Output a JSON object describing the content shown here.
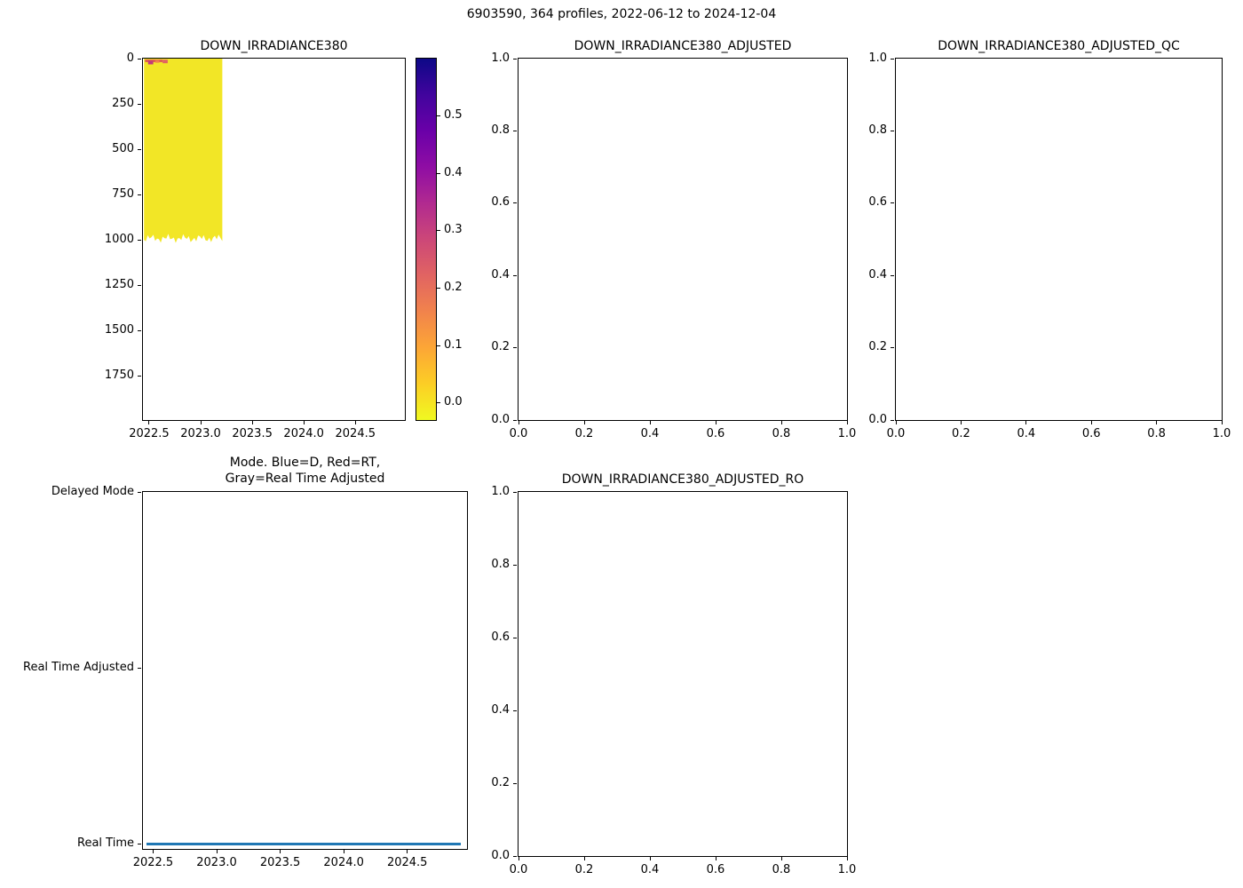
{
  "figure": {
    "suptitle": "6903590, 364 profiles, 2022-06-12 to 2024-12-04",
    "platform_id": "6903590",
    "profiles_count": "364 profiles",
    "date_range": "2022-06-12 to 2024-12-04",
    "background_color": "#ffffff",
    "axis_color": "#000000"
  },
  "chart_data": [
    {
      "id": "irradiance",
      "type": "heatmap",
      "title": "DOWN_IRRADIANCE380",
      "xlabel": "",
      "ylabel": "",
      "xlim": [
        2022.44,
        2024.98
      ],
      "xticks": [
        2022.5,
        2023.0,
        2023.5,
        2024.0,
        2024.5
      ],
      "xtick_labels": [
        "2022.5",
        "2023.0",
        "2023.5",
        "2024.0",
        "2024.5"
      ],
      "ylim_bottom_top": [
        1990,
        0
      ],
      "yticks": [
        0,
        250,
        500,
        750,
        1000,
        1250,
        1500,
        1750
      ],
      "ytick_labels": [
        "0",
        "250",
        "500",
        "750",
        "1000",
        "1250",
        "1500",
        "1750"
      ],
      "grid": false,
      "block": {
        "x0": 2022.45,
        "x1": 2023.21,
        "y_top": 0,
        "y_bottom_mean": 990,
        "y_bottom_jitter": 25,
        "color": "#f2e626",
        "note": "dense profile data, values near 0 (yellow on plasma_r scale), from mission start to ~2023.2, surface to ~1000 dbar"
      },
      "surface_marks": [
        {
          "x": 2022.46,
          "w": 0.17,
          "depth": 5,
          "h": 3,
          "color": "#e0614f"
        },
        {
          "x": 2022.49,
          "w": 0.05,
          "depth": 12,
          "h": 4,
          "color": "#c13a7a"
        },
        {
          "x": 2022.56,
          "w": 0.04,
          "depth": 8,
          "h": 3,
          "color": "#f1834c"
        },
        {
          "x": 2022.63,
          "w": 0.05,
          "depth": 6,
          "h": 4,
          "color": "#e16462"
        }
      ]
    },
    {
      "id": "adjusted",
      "type": "empty",
      "title": "DOWN_IRRADIANCE380_ADJUSTED",
      "xlim": [
        0,
        1
      ],
      "xticks": [
        0,
        0.2,
        0.4,
        0.6,
        0.8,
        1.0
      ],
      "xtick_labels": [
        "0.0",
        "0.2",
        "0.4",
        "0.6",
        "0.8",
        "1.0"
      ],
      "ylim_bottom_top": [
        0,
        1
      ],
      "yticks": [
        0,
        0.2,
        0.4,
        0.6,
        0.8,
        1.0
      ],
      "ytick_labels": [
        "0.0",
        "0.2",
        "0.4",
        "0.6",
        "0.8",
        "1.0"
      ],
      "grid": false
    },
    {
      "id": "adjusted_qc",
      "type": "empty",
      "title": "DOWN_IRRADIANCE380_ADJUSTED_QC",
      "xlim": [
        0,
        1
      ],
      "xticks": [
        0,
        0.2,
        0.4,
        0.6,
        0.8,
        1.0
      ],
      "xtick_labels": [
        "0.0",
        "0.2",
        "0.4",
        "0.6",
        "0.8",
        "1.0"
      ],
      "ylim_bottom_top": [
        0,
        1
      ],
      "yticks": [
        0,
        0.2,
        0.4,
        0.6,
        0.8,
        1.0
      ],
      "ytick_labels": [
        "0.0",
        "0.2",
        "0.4",
        "0.6",
        "0.8",
        "1.0"
      ],
      "grid": false
    },
    {
      "id": "mode",
      "type": "line",
      "title": "Mode. Blue=D, Red=RT,\nGray=Real Time Adjusted",
      "xlim": [
        2022.42,
        2024.97
      ],
      "xticks": [
        2022.5,
        2023.0,
        2023.5,
        2024.0,
        2024.5
      ],
      "xtick_labels": [
        "2022.5",
        "2023.0",
        "2023.5",
        "2024.0",
        "2024.5"
      ],
      "ylim_bottom_top": [
        -0.03,
        2.0
      ],
      "yticks": [
        0,
        1,
        2
      ],
      "ytick_labels": [
        "Real Time",
        "Real Time Adjusted",
        "Delayed Mode"
      ],
      "grid": false,
      "series": [
        {
          "name": "mode-real-time",
          "y": 0,
          "x0": 2022.45,
          "x1": 2024.92,
          "color": "#1f77b4",
          "linewidth": 3
        }
      ]
    },
    {
      "id": "adjusted_ro",
      "type": "empty",
      "title": "DOWN_IRRADIANCE380_ADJUSTED_RO",
      "xlim": [
        0,
        1
      ],
      "xticks": [
        0,
        0.2,
        0.4,
        0.6,
        0.8,
        1.0
      ],
      "xtick_labels": [
        "0.0",
        "0.2",
        "0.4",
        "0.6",
        "0.8",
        "1.0"
      ],
      "ylim_bottom_top": [
        0,
        1
      ],
      "yticks": [
        0,
        0.2,
        0.4,
        0.6,
        0.8,
        1.0
      ],
      "ytick_labels": [
        "0.0",
        "0.2",
        "0.4",
        "0.6",
        "0.8",
        "1.0"
      ],
      "grid": false
    }
  ],
  "colorbar": {
    "cmap_name": "plasma_r",
    "vmin": -0.03,
    "vmax": 0.6,
    "ticks": [
      0.0,
      0.1,
      0.2,
      0.3,
      0.4,
      0.5
    ],
    "tick_labels": [
      "0.0",
      "0.1",
      "0.2",
      "0.3",
      "0.4",
      "0.5"
    ],
    "stops_bottom_to_top": [
      "#f0f921",
      "#fcce25",
      "#fca636",
      "#f1834c",
      "#e16462",
      "#cc4778",
      "#b12a90",
      "#8f0da4",
      "#6a00a8",
      "#41049d",
      "#0d0887"
    ]
  }
}
